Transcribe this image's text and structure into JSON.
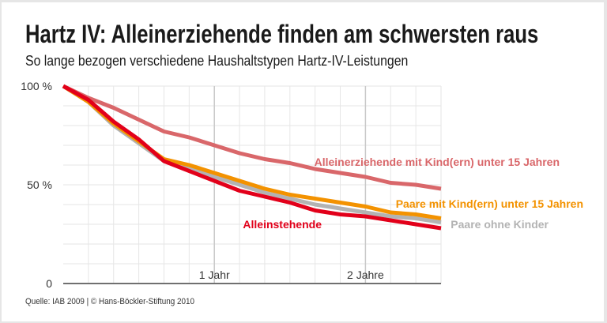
{
  "title": "Hartz IV: Alleinerziehende finden am schwersten raus",
  "subtitle": "So lange bezogen verschiedene Haushaltstypen Hartz-IV-Leistungen",
  "source": "Quelle: IAB 2009 | © Hans-Böckler-Stiftung 2010",
  "chart_data": {
    "type": "line",
    "title": "Hartz IV: Alleinerziehende finden am schwersten raus",
    "xlabel": "",
    "ylabel": "",
    "x_unit": "Monate",
    "x": [
      0,
      2,
      4,
      6,
      8,
      10,
      12,
      14,
      16,
      18,
      20,
      22,
      24,
      26,
      28,
      30
    ],
    "xlim": [
      0,
      30
    ],
    "ylim": [
      0,
      100
    ],
    "grid": true,
    "y_ticks": [
      {
        "value": 0,
        "label": "0"
      },
      {
        "value": 50,
        "label": "50 %"
      },
      {
        "value": 100,
        "label": "100 %"
      }
    ],
    "x_ticks": [
      {
        "value": 12,
        "label": "1 Jahr"
      },
      {
        "value": 24,
        "label": "2 Jahre"
      }
    ],
    "series": [
      {
        "name": "Alleinerziehende mit Kind(ern) unter 15 Jahren",
        "color": "#d9676a",
        "values": [
          100,
          94,
          89,
          83,
          77,
          74,
          70,
          66,
          63,
          61,
          58,
          56,
          54,
          51,
          50,
          48
        ]
      },
      {
        "name": "Paare ohne Kinder",
        "color": "#b3b3b3",
        "values": [
          100,
          92,
          80,
          71,
          62,
          58,
          54,
          50,
          46,
          43,
          40,
          38,
          36,
          34,
          33,
          31
        ]
      },
      {
        "name": "Paare mit Kind(ern) unter 15 Jahren",
        "color": "#f39200",
        "values": [
          100,
          92,
          81,
          72,
          63,
          60,
          56,
          52,
          48,
          45,
          43,
          41,
          39,
          36,
          35,
          33
        ]
      },
      {
        "name": "Alleinstehende",
        "color": "#e2001a",
        "values": [
          100,
          93,
          82,
          73,
          62,
          57,
          52,
          47,
          44,
          41,
          37,
          35,
          34,
          32,
          30,
          28
        ]
      }
    ]
  }
}
